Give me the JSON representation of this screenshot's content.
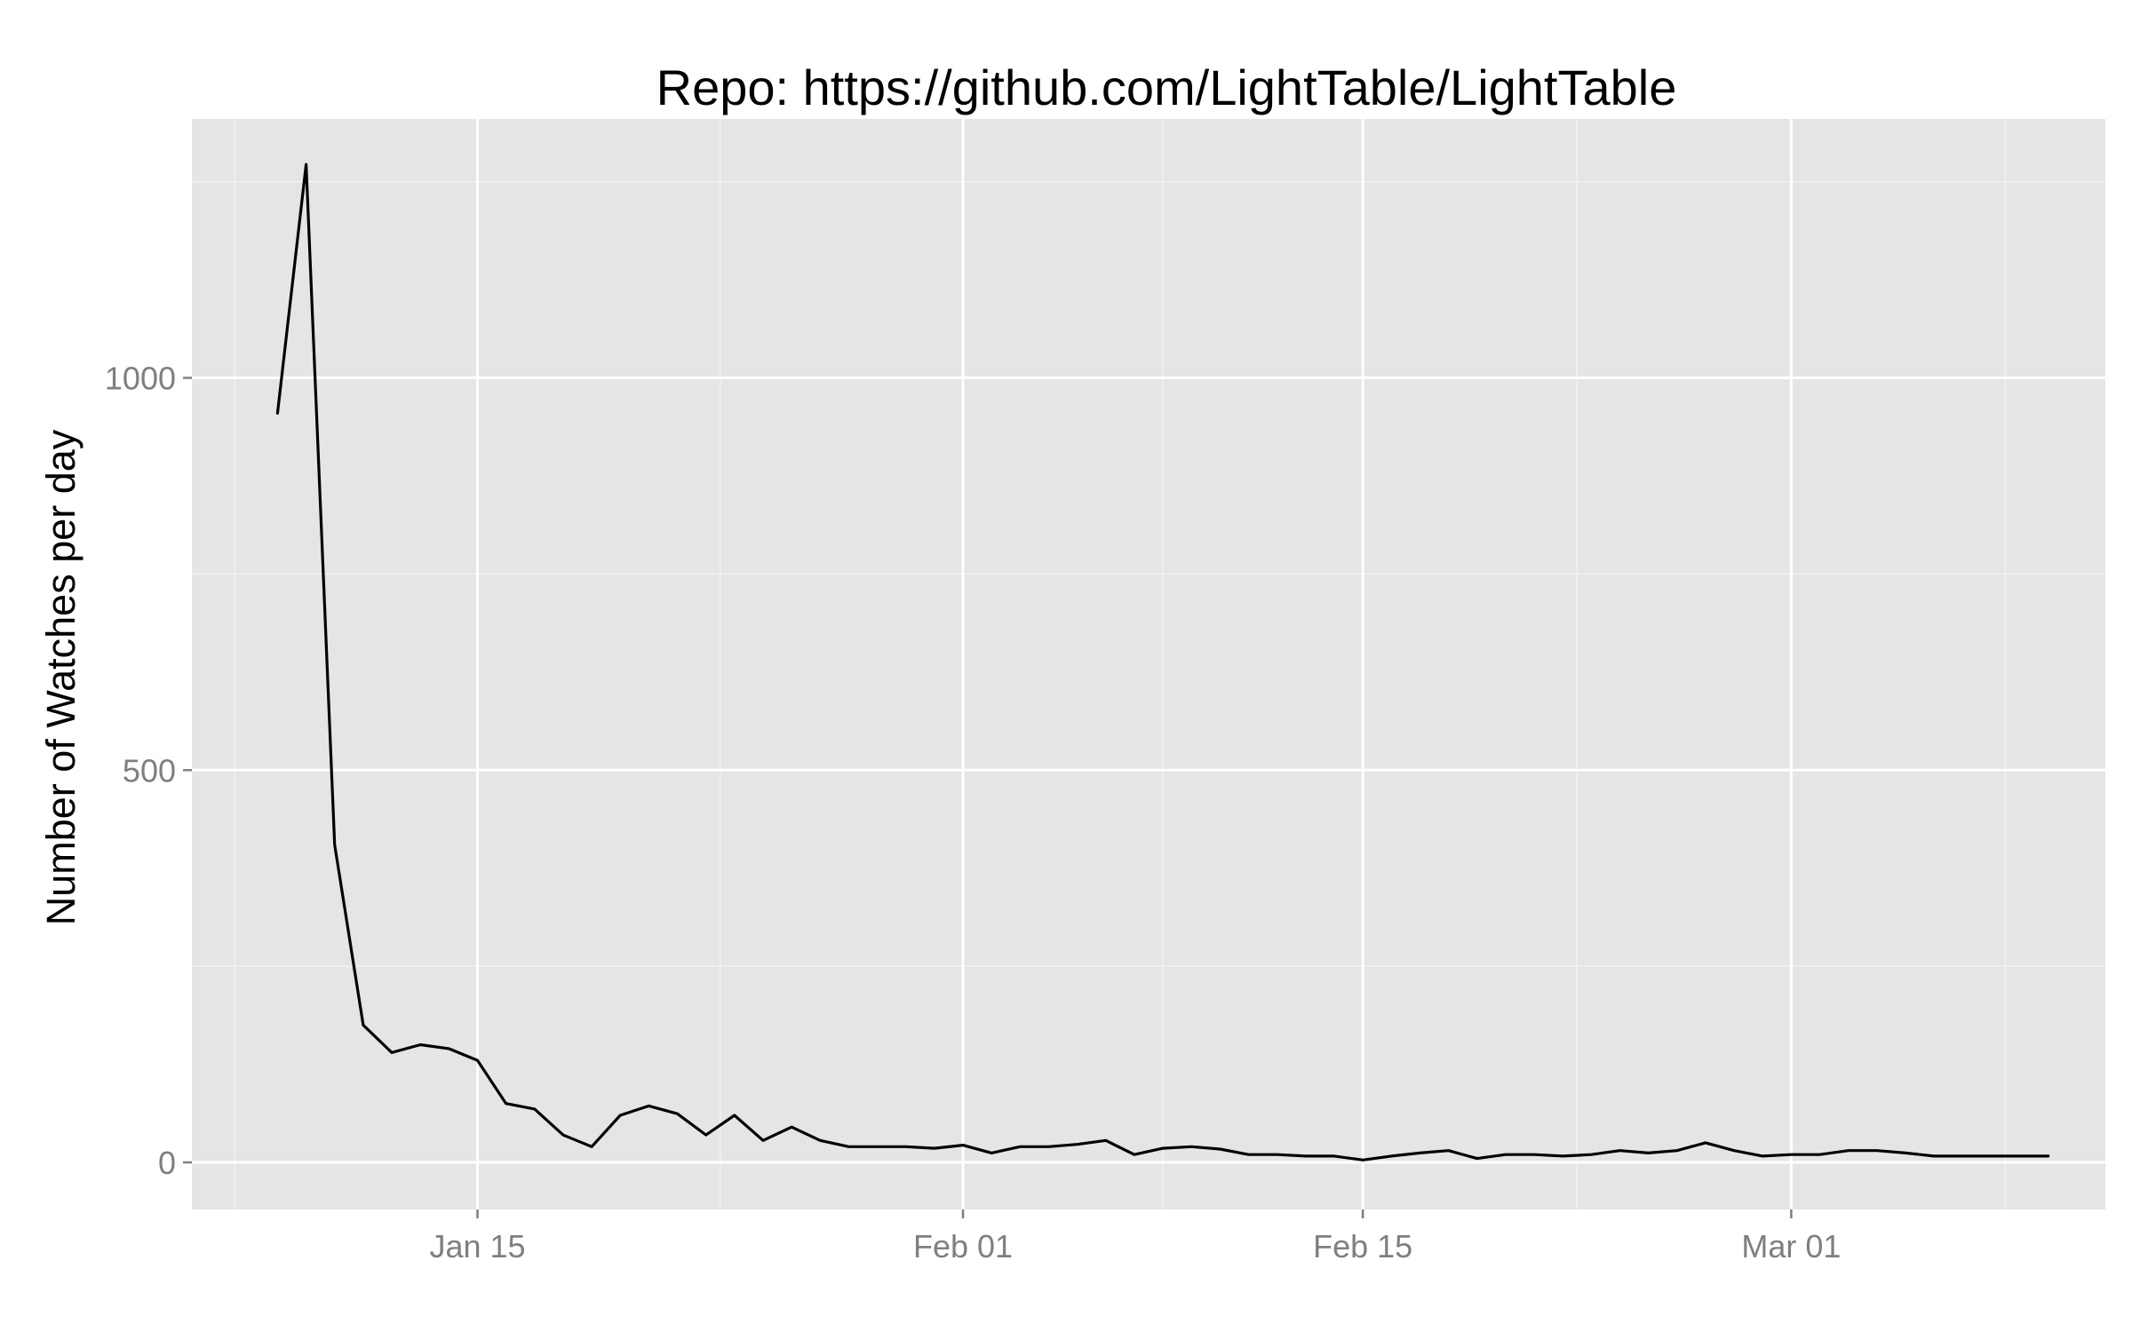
{
  "chart_data": {
    "type": "line",
    "title": "Repo: https://github.com/LightTable/LightTable",
    "xlabel": "",
    "ylabel": "Number of Watches per day",
    "x_ticks": [
      {
        "date": "2012-01-15",
        "label": "Jan 15"
      },
      {
        "date": "2012-02-01",
        "label": "Feb 01"
      },
      {
        "date": "2012-02-15",
        "label": "Feb 15"
      },
      {
        "date": "2012-03-01",
        "label": "Mar 01"
      }
    ],
    "y_ticks": [
      {
        "value": 0,
        "label": "0"
      },
      {
        "value": 500,
        "label": "500"
      },
      {
        "value": 1000,
        "label": "1000"
      }
    ],
    "xlim": [
      "2012-01-05",
      "2012-03-12"
    ],
    "ylim": [
      -60,
      1330
    ],
    "grid": true,
    "colors": {
      "panel_background": "#e5e5e5",
      "grid_major": "#ffffff",
      "grid_minor": "#f2f2f2",
      "line": "#000000"
    },
    "series": [
      {
        "x": [
          "2012-01-08",
          "2012-01-09",
          "2012-01-10",
          "2012-01-11",
          "2012-01-12",
          "2012-01-13",
          "2012-01-14",
          "2012-01-15",
          "2012-01-16",
          "2012-01-17",
          "2012-01-18",
          "2012-01-19",
          "2012-01-20",
          "2012-01-21",
          "2012-01-22",
          "2012-01-23",
          "2012-01-24",
          "2012-01-25",
          "2012-01-26",
          "2012-01-27",
          "2012-01-28",
          "2012-01-29",
          "2012-01-30",
          "2012-01-31",
          "2012-02-01",
          "2012-02-02",
          "2012-02-03",
          "2012-02-04",
          "2012-02-05",
          "2012-02-06",
          "2012-02-07",
          "2012-02-08",
          "2012-02-09",
          "2012-02-10",
          "2012-02-11",
          "2012-02-12",
          "2012-02-13",
          "2012-02-14",
          "2012-02-15",
          "2012-02-16",
          "2012-02-17",
          "2012-02-18",
          "2012-02-19",
          "2012-02-20",
          "2012-02-21",
          "2012-02-22",
          "2012-02-23",
          "2012-02-24",
          "2012-02-25",
          "2012-02-26",
          "2012-02-27",
          "2012-02-28",
          "2012-02-29",
          "2012-03-01",
          "2012-03-02",
          "2012-03-03",
          "2012-03-04",
          "2012-03-05",
          "2012-03-06",
          "2012-03-07",
          "2012-03-08",
          "2012-03-09",
          "2012-03-10"
        ],
        "values": [
          955,
          1272,
          405,
          175,
          140,
          150,
          145,
          130,
          75,
          68,
          35,
          20,
          60,
          72,
          62,
          35,
          60,
          28,
          45,
          28,
          20,
          20,
          20,
          18,
          22,
          12,
          20,
          20,
          23,
          28,
          10,
          18,
          20,
          17,
          10,
          10,
          8,
          8,
          3,
          8,
          12,
          15,
          5,
          10,
          10,
          8,
          10,
          15,
          12,
          15,
          25,
          15,
          8,
          10,
          10,
          15,
          15,
          12,
          8,
          8,
          8,
          8,
          8
        ]
      }
    ]
  }
}
